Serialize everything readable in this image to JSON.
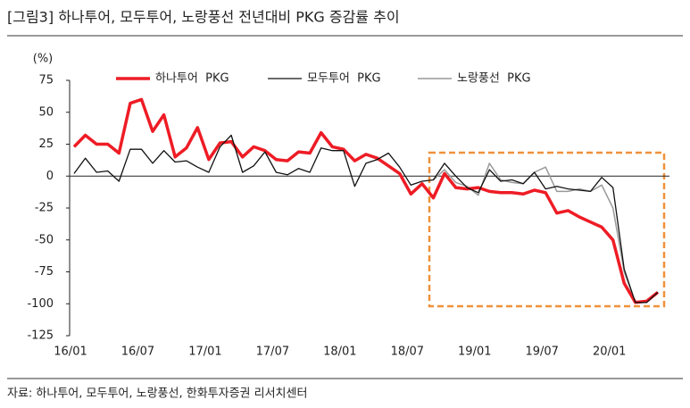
{
  "chart_data": {
    "type": "line",
    "title": "[그림3]    하나투어, 모두투어, 노랑풍선 전년대비 PKG 증감률 추이",
    "y_unit_label": "(%)",
    "source": "자료: 하나투어, 모두투어, 노랑풍선, 한화투자증권 리서치센터",
    "categories": [
      "16/01",
      null,
      null,
      null,
      null,
      null,
      "16/07",
      null,
      null,
      null,
      null,
      null,
      "17/01",
      null,
      null,
      null,
      null,
      null,
      "17/07",
      null,
      null,
      null,
      null,
      null,
      "18/01",
      null,
      null,
      null,
      null,
      null,
      "18/07",
      null,
      null,
      null,
      null,
      null,
      "19/01",
      null,
      null,
      null,
      null,
      null,
      "19/07",
      null,
      null,
      null,
      null,
      null,
      "20/01",
      null,
      null,
      null,
      null
    ],
    "ylim": [
      -125,
      75
    ],
    "yticks": [
      -125,
      -100,
      -75,
      -50,
      -25,
      0,
      25,
      50,
      75
    ],
    "grid": false,
    "series": [
      {
        "name": "하나투어  PKG",
        "color": "#ee1c25",
        "width": 3.5,
        "values": [
          23,
          32,
          25,
          25,
          18,
          57,
          60,
          35,
          48,
          15,
          22,
          38,
          13,
          26,
          27,
          15,
          23,
          20,
          13,
          12,
          19,
          18,
          34,
          23,
          21,
          12,
          17,
          14,
          8,
          2,
          -14,
          -6,
          -17,
          2,
          -9,
          -10,
          -9,
          -12,
          -13,
          -13,
          -14,
          -11,
          -13,
          -29,
          -27,
          -32,
          -36,
          -40,
          -50,
          -84,
          -99,
          -98,
          -91
        ]
      },
      {
        "name": "모두투어  PKG",
        "color": "#111111",
        "width": 1.3,
        "values": [
          2,
          14,
          3,
          4,
          -4,
          21,
          21,
          10,
          20,
          11,
          12,
          7,
          3,
          23,
          32,
          3,
          8,
          19,
          3,
          1,
          6,
          3,
          22,
          20,
          20,
          -8,
          10,
          13,
          18,
          7,
          -7,
          -4,
          -3,
          10,
          0,
          -9,
          -13,
          5,
          -4,
          -3,
          -6,
          3,
          -10,
          -8,
          -10,
          -11,
          -12,
          -1,
          -9,
          -73,
          -99,
          -99,
          -91
        ]
      },
      {
        "name": "노랑풍선  PKG",
        "color": "#999999",
        "width": 1.5,
        "values": [
          null,
          null,
          null,
          null,
          null,
          null,
          null,
          null,
          null,
          null,
          null,
          null,
          null,
          null,
          null,
          null,
          null,
          null,
          null,
          null,
          null,
          null,
          null,
          null,
          null,
          null,
          null,
          null,
          null,
          null,
          null,
          null,
          -3,
          5,
          -5,
          -8,
          -15,
          10,
          -3,
          -5,
          -6,
          3,
          7,
          -12,
          -12,
          -10,
          -12,
          -7,
          -25,
          -75,
          -99,
          -99,
          -91
        ]
      }
    ]
  }
}
